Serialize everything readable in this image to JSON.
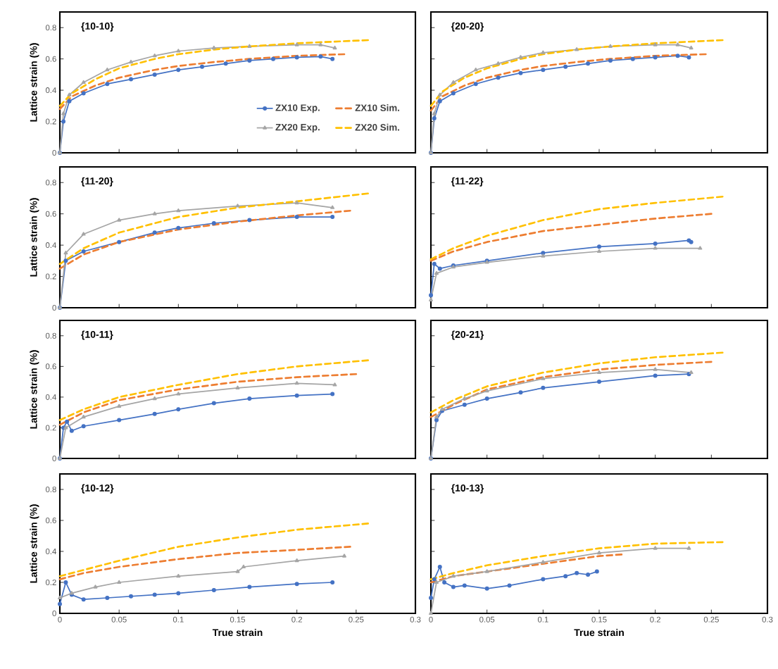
{
  "chart_data": [
    {
      "type": "line",
      "title": "{10-10}",
      "ylabel": "Lattice strain (%)",
      "xlim": [
        0,
        0.3
      ],
      "ylim": [
        0,
        0.9
      ],
      "xticks": [
        0,
        0.05,
        0.1,
        0.15,
        0.2,
        0.25,
        0.3
      ],
      "yticks": [
        0,
        0.2,
        0.4,
        0.6,
        0.8
      ],
      "tick_labels": "y",
      "legend": "bottom right",
      "series": [
        {
          "name": "ZX10 Exp.",
          "color": "#4472c4",
          "marker": "circle",
          "line_style": "solid",
          "x": [
            0,
            0.003,
            0.008,
            0.02,
            0.04,
            0.06,
            0.08,
            0.1,
            0.12,
            0.14,
            0.16,
            0.18,
            0.2,
            0.22,
            0.23
          ],
          "values": [
            0,
            0.2,
            0.33,
            0.38,
            0.44,
            0.47,
            0.5,
            0.53,
            0.55,
            0.57,
            0.59,
            0.6,
            0.61,
            0.615,
            0.6
          ]
        },
        {
          "name": "ZX10 Sim.",
          "color": "#ed7d31",
          "marker": "none",
          "line_style": "dashed",
          "x": [
            0,
            0.01,
            0.03,
            0.05,
            0.08,
            0.1,
            0.13,
            0.16,
            0.2,
            0.24
          ],
          "values": [
            0.28,
            0.36,
            0.43,
            0.48,
            0.53,
            0.555,
            0.58,
            0.6,
            0.62,
            0.63
          ]
        },
        {
          "name": "ZX20 Exp.",
          "color": "#a5a5a5",
          "marker": "triangle",
          "line_style": "solid",
          "x": [
            0,
            0.003,
            0.008,
            0.02,
            0.04,
            0.06,
            0.08,
            0.1,
            0.13,
            0.16,
            0.2,
            0.22,
            0.232
          ],
          "values": [
            0,
            0.25,
            0.37,
            0.45,
            0.53,
            0.58,
            0.62,
            0.65,
            0.67,
            0.68,
            0.69,
            0.69,
            0.67
          ]
        },
        {
          "name": "ZX20 Sim.",
          "color": "#ffc000",
          "marker": "none",
          "line_style": "dashed",
          "x": [
            0,
            0.01,
            0.03,
            0.05,
            0.08,
            0.1,
            0.13,
            0.16,
            0.2,
            0.23,
            0.26
          ],
          "values": [
            0.3,
            0.38,
            0.47,
            0.54,
            0.6,
            0.63,
            0.66,
            0.68,
            0.7,
            0.71,
            0.72
          ]
        }
      ]
    },
    {
      "type": "line",
      "title": "{20-20}",
      "xlim": [
        0,
        0.3
      ],
      "ylim": [
        0,
        0.9
      ],
      "xticks": [
        0,
        0.05,
        0.1,
        0.15,
        0.2,
        0.25,
        0.3
      ],
      "yticks": [
        0,
        0.2,
        0.4,
        0.6,
        0.8
      ],
      "tick_labels": false,
      "series": [
        {
          "color": "#4472c4",
          "marker": "circle",
          "line_style": "solid",
          "x": [
            0,
            0.003,
            0.008,
            0.02,
            0.04,
            0.06,
            0.08,
            0.1,
            0.12,
            0.14,
            0.16,
            0.18,
            0.2,
            0.22,
            0.23
          ],
          "values": [
            0,
            0.22,
            0.33,
            0.38,
            0.44,
            0.48,
            0.51,
            0.53,
            0.55,
            0.57,
            0.59,
            0.6,
            0.61,
            0.62,
            0.61
          ]
        },
        {
          "color": "#ed7d31",
          "marker": "none",
          "line_style": "dashed",
          "x": [
            0,
            0.01,
            0.03,
            0.05,
            0.08,
            0.1,
            0.13,
            0.16,
            0.2,
            0.245
          ],
          "values": [
            0.27,
            0.36,
            0.43,
            0.48,
            0.53,
            0.555,
            0.58,
            0.6,
            0.62,
            0.63
          ]
        },
        {
          "color": "#a5a5a5",
          "marker": "triangle",
          "line_style": "solid",
          "x": [
            0,
            0.003,
            0.008,
            0.02,
            0.04,
            0.06,
            0.08,
            0.1,
            0.13,
            0.16,
            0.2,
            0.22,
            0.232
          ],
          "values": [
            0,
            0.25,
            0.37,
            0.45,
            0.53,
            0.57,
            0.61,
            0.64,
            0.66,
            0.68,
            0.69,
            0.69,
            0.67
          ]
        },
        {
          "color": "#ffc000",
          "marker": "none",
          "line_style": "dashed",
          "x": [
            0,
            0.01,
            0.03,
            0.05,
            0.08,
            0.1,
            0.13,
            0.16,
            0.2,
            0.23,
            0.26
          ],
          "values": [
            0.3,
            0.39,
            0.48,
            0.54,
            0.6,
            0.63,
            0.66,
            0.68,
            0.7,
            0.71,
            0.72
          ]
        }
      ]
    },
    {
      "type": "line",
      "title": "{11-20}",
      "ylabel": "Lattice strain (%)",
      "xlim": [
        0,
        0.3
      ],
      "ylim": [
        0,
        0.9
      ],
      "xticks": [
        0,
        0.05,
        0.1,
        0.15,
        0.2,
        0.25,
        0.3
      ],
      "yticks": [
        0,
        0.2,
        0.4,
        0.6,
        0.8
      ],
      "tick_labels": "y",
      "series": [
        {
          "color": "#4472c4",
          "marker": "circle",
          "line_style": "solid",
          "x": [
            0,
            0.005,
            0.02,
            0.05,
            0.08,
            0.1,
            0.13,
            0.16,
            0.2,
            0.23
          ],
          "values": [
            0,
            0.3,
            0.36,
            0.42,
            0.48,
            0.51,
            0.54,
            0.56,
            0.58,
            0.58
          ]
        },
        {
          "color": "#ed7d31",
          "marker": "none",
          "line_style": "dashed",
          "x": [
            0,
            0.02,
            0.05,
            0.1,
            0.15,
            0.2,
            0.245
          ],
          "values": [
            0.25,
            0.34,
            0.42,
            0.5,
            0.55,
            0.59,
            0.62
          ]
        },
        {
          "color": "#a5a5a5",
          "marker": "triangle",
          "line_style": "solid",
          "x": [
            0,
            0.005,
            0.02,
            0.05,
            0.08,
            0.1,
            0.15,
            0.2,
            0.23
          ],
          "values": [
            0,
            0.35,
            0.47,
            0.56,
            0.6,
            0.62,
            0.65,
            0.67,
            0.64
          ]
        },
        {
          "color": "#ffc000",
          "marker": "none",
          "line_style": "dashed",
          "x": [
            0,
            0.02,
            0.05,
            0.1,
            0.15,
            0.2,
            0.26
          ],
          "values": [
            0.28,
            0.38,
            0.48,
            0.58,
            0.64,
            0.68,
            0.73
          ]
        }
      ]
    },
    {
      "type": "line",
      "title": "{11-22}",
      "xlim": [
        0,
        0.3
      ],
      "ylim": [
        0,
        0.9
      ],
      "xticks": [
        0,
        0.05,
        0.1,
        0.15,
        0.2,
        0.25,
        0.3
      ],
      "yticks": [
        0,
        0.2,
        0.4,
        0.6,
        0.8
      ],
      "tick_labels": false,
      "series": [
        {
          "color": "#4472c4",
          "marker": "circle",
          "line_style": "solid",
          "x": [
            0,
            0.003,
            0.008,
            0.02,
            0.05,
            0.1,
            0.15,
            0.2,
            0.23,
            0.232
          ],
          "values": [
            0.08,
            0.28,
            0.25,
            0.27,
            0.3,
            0.35,
            0.39,
            0.41,
            0.43,
            0.42
          ]
        },
        {
          "color": "#ed7d31",
          "marker": "none",
          "line_style": "dashed",
          "x": [
            0,
            0.02,
            0.05,
            0.1,
            0.15,
            0.2,
            0.25
          ],
          "values": [
            0.3,
            0.36,
            0.42,
            0.49,
            0.53,
            0.57,
            0.6
          ]
        },
        {
          "color": "#a5a5a5",
          "marker": "triangle",
          "line_style": "solid",
          "x": [
            0,
            0.005,
            0.02,
            0.05,
            0.1,
            0.15,
            0.2,
            0.24
          ],
          "values": [
            0.05,
            0.22,
            0.26,
            0.29,
            0.33,
            0.36,
            0.38,
            0.38
          ]
        },
        {
          "color": "#ffc000",
          "marker": "none",
          "line_style": "dashed",
          "x": [
            0,
            0.02,
            0.05,
            0.1,
            0.15,
            0.2,
            0.26
          ],
          "values": [
            0.31,
            0.38,
            0.46,
            0.56,
            0.63,
            0.67,
            0.71
          ]
        }
      ]
    },
    {
      "type": "line",
      "title": "{10-11}",
      "ylabel": "Lattice strain (%)",
      "xlim": [
        0,
        0.3
      ],
      "ylim": [
        0,
        0.9
      ],
      "xticks": [
        0,
        0.05,
        0.1,
        0.15,
        0.2,
        0.25,
        0.3
      ],
      "yticks": [
        0,
        0.2,
        0.4,
        0.6,
        0.8
      ],
      "tick_labels": "y",
      "series": [
        {
          "color": "#4472c4",
          "marker": "circle",
          "line_style": "solid",
          "x": [
            0,
            0.003,
            0.006,
            0.01,
            0.02,
            0.05,
            0.08,
            0.1,
            0.13,
            0.16,
            0.2,
            0.23
          ],
          "values": [
            0,
            0.2,
            0.24,
            0.18,
            0.21,
            0.25,
            0.29,
            0.32,
            0.36,
            0.39,
            0.41,
            0.42
          ]
        },
        {
          "color": "#ed7d31",
          "marker": "none",
          "line_style": "dashed",
          "x": [
            0,
            0.02,
            0.05,
            0.1,
            0.15,
            0.2,
            0.25
          ],
          "values": [
            0.22,
            0.3,
            0.38,
            0.45,
            0.5,
            0.53,
            0.55
          ]
        },
        {
          "color": "#a5a5a5",
          "marker": "triangle",
          "line_style": "solid",
          "x": [
            0,
            0.005,
            0.02,
            0.05,
            0.08,
            0.1,
            0.15,
            0.2,
            0.232
          ],
          "values": [
            0,
            0.2,
            0.27,
            0.34,
            0.39,
            0.42,
            0.46,
            0.49,
            0.48
          ]
        },
        {
          "color": "#ffc000",
          "marker": "none",
          "line_style": "dashed",
          "x": [
            0,
            0.02,
            0.05,
            0.1,
            0.15,
            0.2,
            0.26
          ],
          "values": [
            0.25,
            0.32,
            0.4,
            0.48,
            0.55,
            0.6,
            0.64
          ]
        }
      ]
    },
    {
      "type": "line",
      "title": "{20-21}",
      "xlim": [
        0,
        0.3
      ],
      "ylim": [
        0,
        0.9
      ],
      "xticks": [
        0,
        0.05,
        0.1,
        0.15,
        0.2,
        0.25,
        0.3
      ],
      "yticks": [
        0,
        0.2,
        0.4,
        0.6,
        0.8
      ],
      "tick_labels": false,
      "series": [
        {
          "color": "#4472c4",
          "marker": "circle",
          "line_style": "solid",
          "x": [
            0,
            0.005,
            0.01,
            0.03,
            0.05,
            0.08,
            0.1,
            0.15,
            0.2,
            0.23
          ],
          "values": [
            0,
            0.25,
            0.31,
            0.35,
            0.39,
            0.43,
            0.46,
            0.5,
            0.54,
            0.55
          ]
        },
        {
          "color": "#ed7d31",
          "marker": "none",
          "line_style": "dashed",
          "x": [
            0,
            0.02,
            0.05,
            0.1,
            0.15,
            0.2,
            0.25
          ],
          "values": [
            0.27,
            0.35,
            0.45,
            0.53,
            0.58,
            0.61,
            0.63
          ]
        },
        {
          "color": "#a5a5a5",
          "marker": "triangle",
          "line_style": "solid",
          "x": [
            0,
            0.005,
            0.01,
            0.03,
            0.05,
            0.1,
            0.15,
            0.2,
            0.232
          ],
          "values": [
            0,
            0.27,
            0.32,
            0.39,
            0.44,
            0.52,
            0.56,
            0.58,
            0.56
          ]
        },
        {
          "color": "#ffc000",
          "marker": "none",
          "line_style": "dashed",
          "x": [
            0,
            0.02,
            0.05,
            0.1,
            0.15,
            0.2,
            0.26
          ],
          "values": [
            0.3,
            0.38,
            0.47,
            0.56,
            0.62,
            0.66,
            0.69
          ]
        }
      ]
    },
    {
      "type": "line",
      "title": "{10-12}",
      "xlabel": "True strain",
      "ylabel": "Lattice strain (%)",
      "xlim": [
        0,
        0.3
      ],
      "ylim": [
        0,
        0.9
      ],
      "xticks": [
        0,
        0.05,
        0.1,
        0.15,
        0.2,
        0.25,
        0.3
      ],
      "yticks": [
        0,
        0.2,
        0.4,
        0.6,
        0.8
      ],
      "series": [
        {
          "color": "#4472c4",
          "marker": "circle",
          "line_style": "solid",
          "x": [
            0,
            0.005,
            0.01,
            0.02,
            0.04,
            0.06,
            0.08,
            0.1,
            0.13,
            0.16,
            0.2,
            0.23
          ],
          "values": [
            0.06,
            0.2,
            0.12,
            0.09,
            0.1,
            0.11,
            0.12,
            0.13,
            0.15,
            0.17,
            0.19,
            0.2
          ]
        },
        {
          "color": "#ed7d31",
          "marker": "none",
          "line_style": "dashed",
          "x": [
            0,
            0.02,
            0.05,
            0.1,
            0.15,
            0.2,
            0.245
          ],
          "values": [
            0.22,
            0.26,
            0.3,
            0.35,
            0.39,
            0.41,
            0.43
          ]
        },
        {
          "color": "#a5a5a5",
          "marker": "triangle",
          "line_style": "solid",
          "x": [
            0,
            0.01,
            0.03,
            0.05,
            0.1,
            0.15,
            0.155,
            0.2,
            0.24
          ],
          "values": [
            0.1,
            0.13,
            0.17,
            0.2,
            0.24,
            0.27,
            0.3,
            0.34,
            0.37
          ]
        },
        {
          "color": "#ffc000",
          "marker": "none",
          "line_style": "dashed",
          "x": [
            0,
            0.02,
            0.05,
            0.1,
            0.15,
            0.2,
            0.26
          ],
          "values": [
            0.24,
            0.28,
            0.34,
            0.43,
            0.49,
            0.54,
            0.58
          ]
        }
      ]
    },
    {
      "type": "line",
      "title": "{10-13}",
      "xlabel": "True strain",
      "xlim": [
        0,
        0.3
      ],
      "ylim": [
        0,
        0.9
      ],
      "xticks": [
        0,
        0.05,
        0.1,
        0.15,
        0.2,
        0.25,
        0.3
      ],
      "yticks": [
        0,
        0.2,
        0.4,
        0.6,
        0.8
      ],
      "tick_labels": "x",
      "series": [
        {
          "color": "#4472c4",
          "marker": "circle",
          "line_style": "solid",
          "x": [
            0,
            0.003,
            0.008,
            0.012,
            0.02,
            0.03,
            0.05,
            0.07,
            0.1,
            0.12,
            0.13,
            0.14,
            0.148
          ],
          "values": [
            0.1,
            0.22,
            0.3,
            0.2,
            0.17,
            0.18,
            0.16,
            0.18,
            0.22,
            0.24,
            0.26,
            0.25,
            0.27
          ]
        },
        {
          "color": "#ed7d31",
          "marker": "none",
          "line_style": "dashed",
          "x": [
            0,
            0.02,
            0.05,
            0.1,
            0.15,
            0.17
          ],
          "values": [
            0.2,
            0.24,
            0.27,
            0.32,
            0.37,
            0.38
          ]
        },
        {
          "color": "#a5a5a5",
          "marker": "triangle",
          "line_style": "solid",
          "x": [
            0,
            0.005,
            0.02,
            0.05,
            0.1,
            0.15,
            0.2,
            0.23
          ],
          "values": [
            0,
            0.2,
            0.24,
            0.27,
            0.33,
            0.39,
            0.42,
            0.42
          ]
        },
        {
          "color": "#ffc000",
          "marker": "none",
          "line_style": "dashed",
          "x": [
            0,
            0.02,
            0.05,
            0.1,
            0.15,
            0.2,
            0.26
          ],
          "values": [
            0.22,
            0.26,
            0.31,
            0.37,
            0.42,
            0.45,
            0.46
          ]
        }
      ]
    }
  ]
}
